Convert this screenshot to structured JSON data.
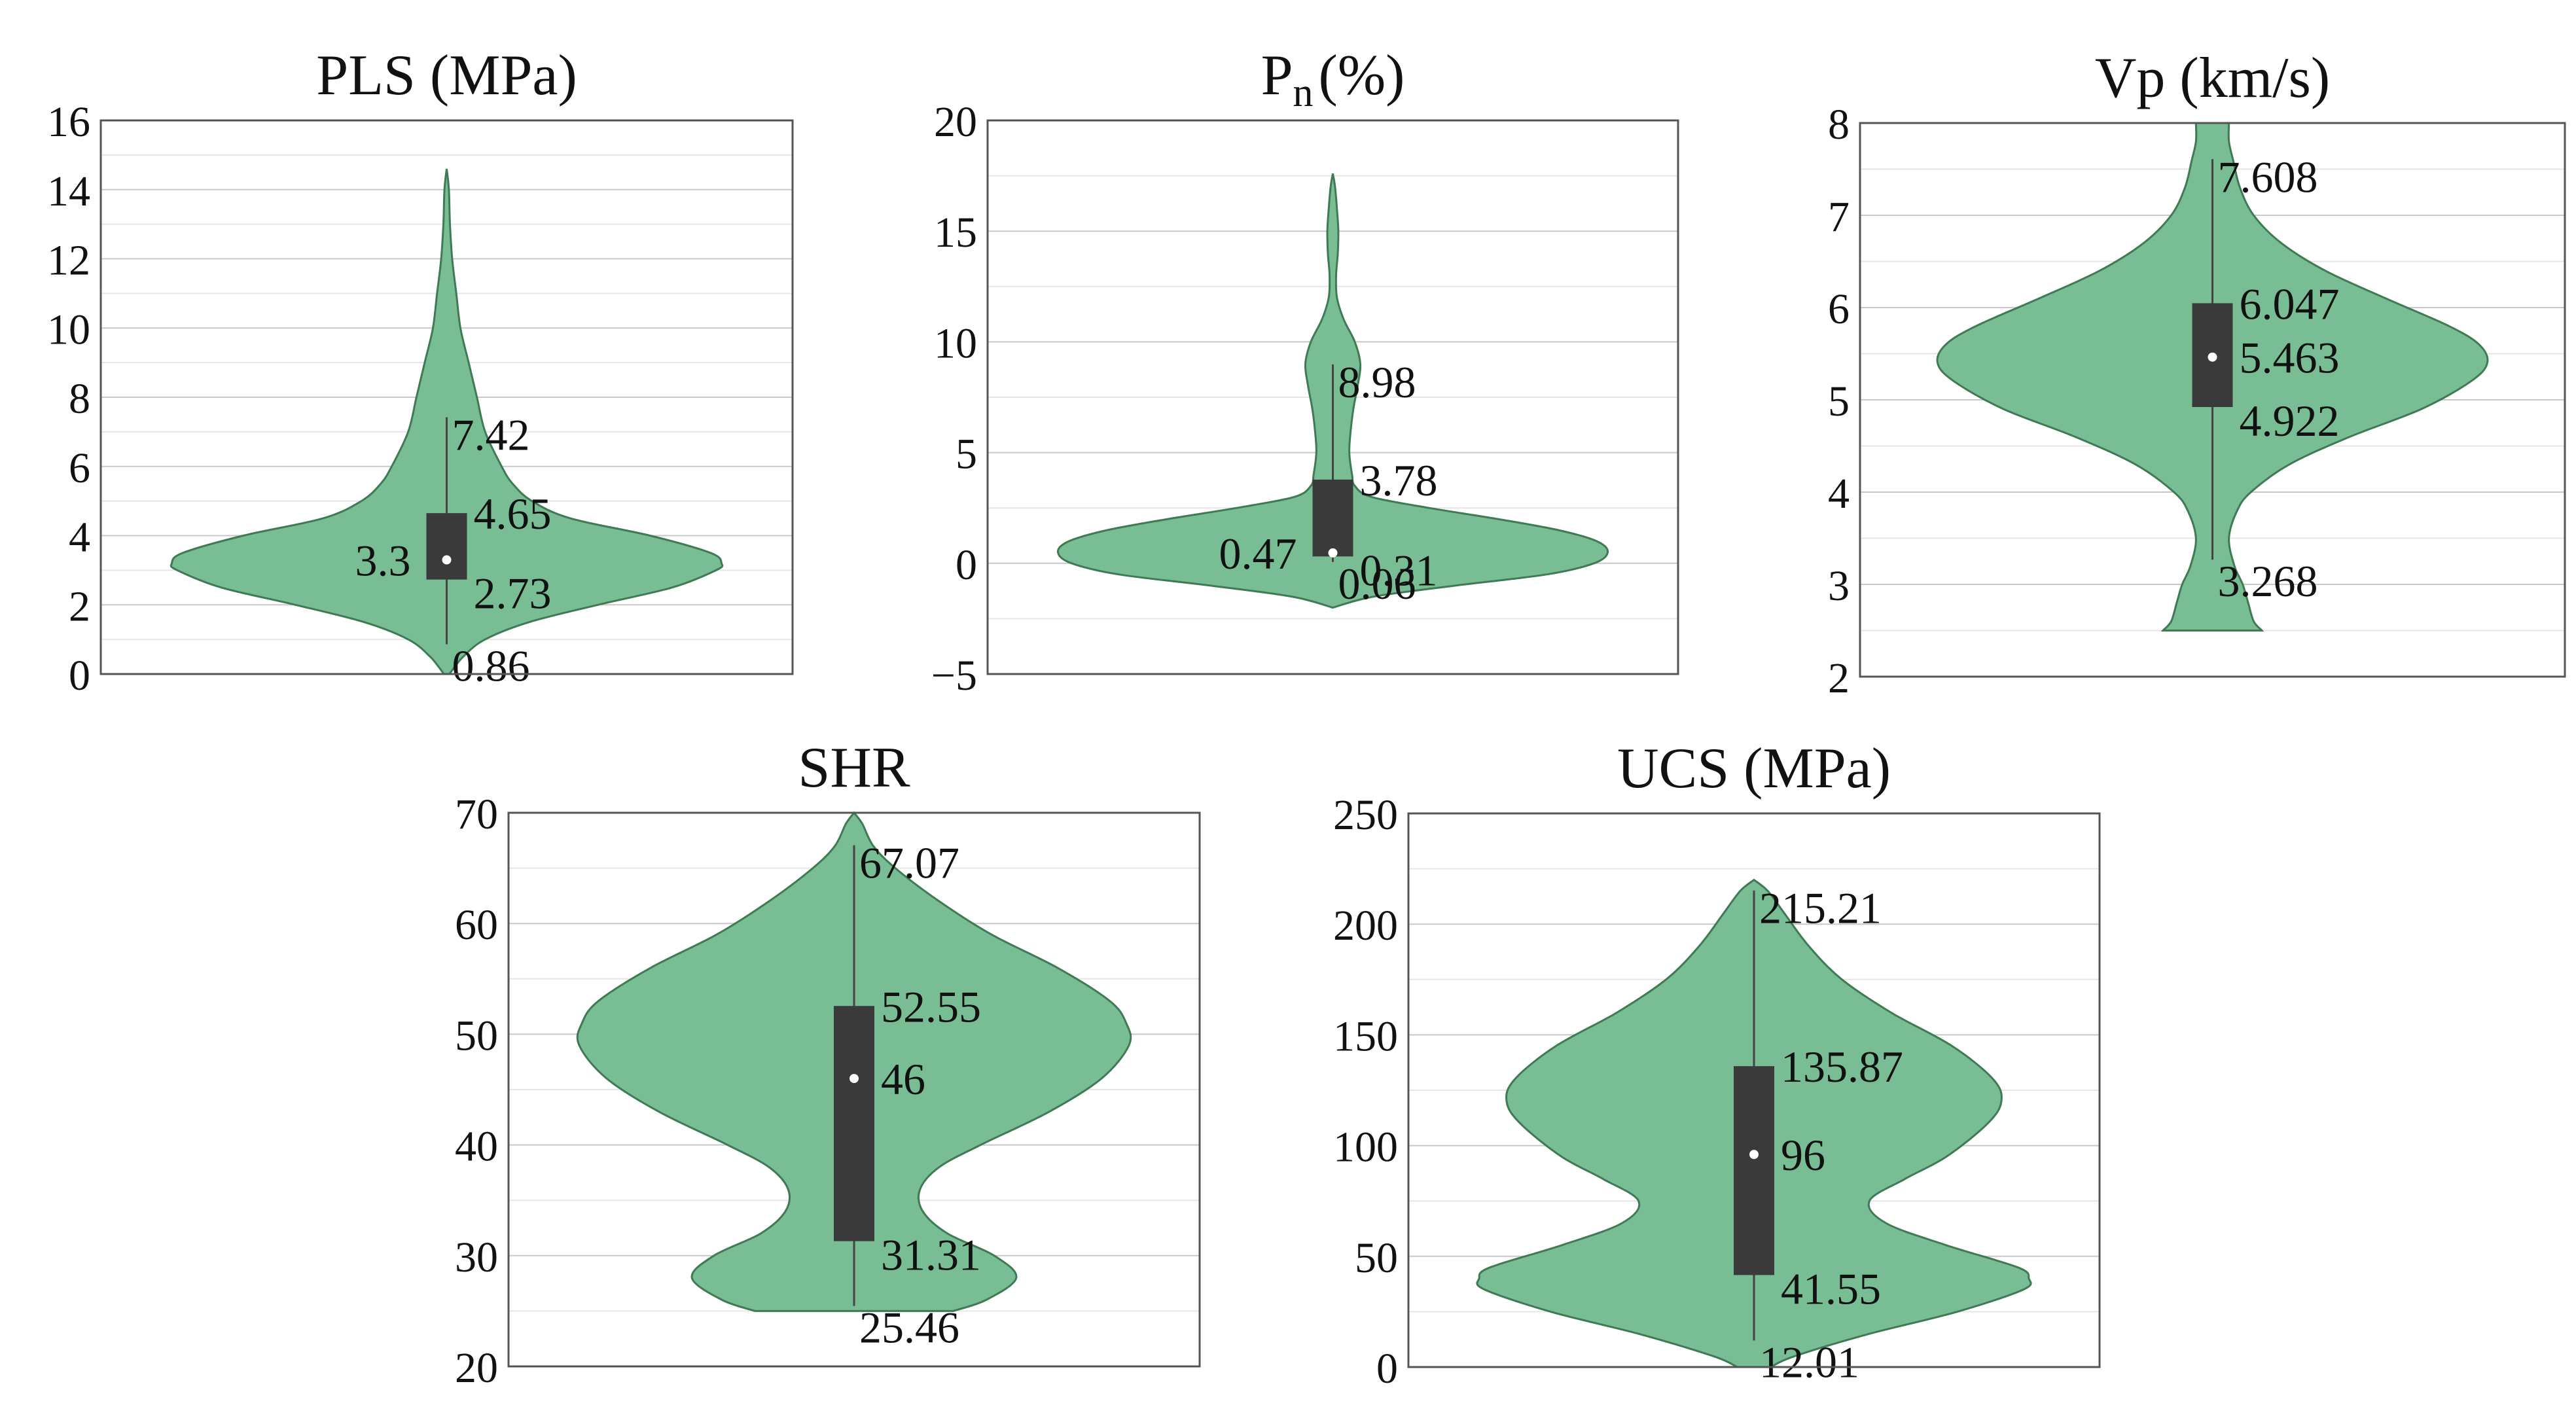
{
  "colors": {
    "violin_fill": "#78bd93",
    "violin_stroke": "#3f7a55",
    "box_fill": "#3a3a3a",
    "whisker": "#444444",
    "median_dot": "#ffffff",
    "grid_major": "#c8c8c8",
    "grid_minor": "#e6e6e6",
    "frame": "#555555"
  },
  "chart_data": [
    {
      "type": "violin",
      "title": "PLS (MPa)",
      "ylim": [
        0,
        16
      ],
      "yticks": [
        0,
        2,
        4,
        6,
        8,
        10,
        12,
        14,
        16
      ],
      "ytick_labels": [
        "0",
        "2",
        "4",
        "6",
        "8",
        "10",
        "12",
        "14",
        "16"
      ],
      "stats": {
        "min": 0.86,
        "q1": 2.73,
        "median": 3.3,
        "q3": 4.65,
        "max": 7.42
      },
      "labels": {
        "min": "0.86",
        "q1": "2.73",
        "median": "3.3",
        "q3": "4.65",
        "max": "7.42"
      },
      "median_label_side": "left",
      "density": [
        [
          0,
          0.01
        ],
        [
          0.5,
          0.06
        ],
        [
          1,
          0.14
        ],
        [
          1.5,
          0.3
        ],
        [
          2,
          0.55
        ],
        [
          2.5,
          0.82
        ],
        [
          3,
          0.98
        ],
        [
          3.2,
          1.0
        ],
        [
          3.5,
          0.96
        ],
        [
          4,
          0.74
        ],
        [
          4.5,
          0.45
        ],
        [
          5,
          0.31
        ],
        [
          5.5,
          0.24
        ],
        [
          6,
          0.2
        ],
        [
          7,
          0.14
        ],
        [
          8,
          0.11
        ],
        [
          9,
          0.08
        ],
        [
          10,
          0.05
        ],
        [
          11,
          0.035
        ],
        [
          12,
          0.02
        ],
        [
          13,
          0.012
        ],
        [
          14,
          0.008
        ],
        [
          14.6,
          0.0
        ]
      ]
    },
    {
      "type": "violin",
      "title": "Pn (%)",
      "title_main": "P",
      "title_sub": "n",
      "title_rest": "(%)",
      "ylim": [
        -5,
        20
      ],
      "yticks": [
        -5,
        0,
        5,
        10,
        15,
        20
      ],
      "ytick_labels": [
        "−5",
        "0",
        "5",
        "10",
        "15",
        "20"
      ],
      "stats": {
        "min": 0.06,
        "q1": 0.31,
        "median": 0.47,
        "q3": 3.78,
        "max": 8.98
      },
      "labels": {
        "min": "0.06",
        "q1": "0.31",
        "median": "0.47",
        "q3": "3.78",
        "max": "8.98"
      },
      "median_label_side": "left",
      "density": [
        [
          -2,
          0.0
        ],
        [
          -1.5,
          0.15
        ],
        [
          -1,
          0.45
        ],
        [
          -0.5,
          0.78
        ],
        [
          0,
          0.95
        ],
        [
          0.5,
          1.0
        ],
        [
          1,
          0.96
        ],
        [
          1.5,
          0.82
        ],
        [
          2,
          0.6
        ],
        [
          2.5,
          0.35
        ],
        [
          3,
          0.14
        ],
        [
          3.5,
          0.08
        ],
        [
          4,
          0.07
        ],
        [
          5,
          0.06
        ],
        [
          6,
          0.065
        ],
        [
          7,
          0.075
        ],
        [
          8,
          0.09
        ],
        [
          9,
          0.1
        ],
        [
          10,
          0.08
        ],
        [
          11,
          0.04
        ],
        [
          12,
          0.015
        ],
        [
          13,
          0.012
        ],
        [
          14,
          0.018
        ],
        [
          15,
          0.02
        ],
        [
          16,
          0.015
        ],
        [
          17,
          0.008
        ],
        [
          17.6,
          0.0
        ]
      ]
    },
    {
      "type": "violin",
      "title": "Vp (km/s)",
      "ylim": [
        2,
        8
      ],
      "yticks": [
        2,
        3,
        4,
        5,
        6,
        7,
        8
      ],
      "ytick_labels": [
        "2",
        "3",
        "4",
        "5",
        "6",
        "7",
        "8"
      ],
      "stats": {
        "min": 3.268,
        "q1": 4.922,
        "median": 5.463,
        "q3": 6.047,
        "max": 7.608
      },
      "labels": {
        "min": "3.268",
        "q1": "4.922",
        "median": "5.463",
        "q3": "6.047",
        "max": "7.608"
      },
      "median_label_side": "right",
      "density": [
        [
          2.5,
          0.18
        ],
        [
          2.6,
          0.15
        ],
        [
          2.8,
          0.13
        ],
        [
          3,
          0.11
        ],
        [
          3.2,
          0.08
        ],
        [
          3.5,
          0.06
        ],
        [
          3.8,
          0.09
        ],
        [
          4,
          0.14
        ],
        [
          4.3,
          0.28
        ],
        [
          4.6,
          0.5
        ],
        [
          4.9,
          0.76
        ],
        [
          5.2,
          0.94
        ],
        [
          5.4,
          1.0
        ],
        [
          5.6,
          0.97
        ],
        [
          5.8,
          0.86
        ],
        [
          6.1,
          0.63
        ],
        [
          6.4,
          0.41
        ],
        [
          6.7,
          0.25
        ],
        [
          7,
          0.15
        ],
        [
          7.3,
          0.1
        ],
        [
          7.6,
          0.075
        ],
        [
          7.8,
          0.06
        ],
        [
          8,
          0.06
        ]
      ]
    },
    {
      "type": "violin",
      "title": "SHR",
      "ylim": [
        20,
        70
      ],
      "yticks": [
        20,
        30,
        40,
        50,
        60,
        70
      ],
      "ytick_labels": [
        "20",
        "30",
        "40",
        "50",
        "60",
        "70"
      ],
      "stats": {
        "min": 25.46,
        "q1": 31.31,
        "median": 46,
        "q3": 52.55,
        "max": 67.07
      },
      "labels": {
        "min": "25.46",
        "q1": "31.31",
        "median": "46",
        "q3": "52.55",
        "max": "67.07"
      },
      "median_label_side": "right",
      "density": [
        [
          25,
          0.36
        ],
        [
          26,
          0.48
        ],
        [
          28,
          0.59
        ],
        [
          30,
          0.51
        ],
        [
          32,
          0.34
        ],
        [
          34,
          0.25
        ],
        [
          36,
          0.24
        ],
        [
          38,
          0.31
        ],
        [
          40,
          0.46
        ],
        [
          43,
          0.71
        ],
        [
          46,
          0.9
        ],
        [
          49,
          1.0
        ],
        [
          51,
          0.99
        ],
        [
          53,
          0.93
        ],
        [
          56,
          0.74
        ],
        [
          59,
          0.5
        ],
        [
          62,
          0.31
        ],
        [
          65,
          0.15
        ],
        [
          67,
          0.07
        ],
        [
          69,
          0.03
        ],
        [
          70,
          0.0
        ]
      ]
    },
    {
      "type": "violin",
      "title": "UCS (MPa)",
      "ylim": [
        0,
        250
      ],
      "yticks": [
        0,
        50,
        100,
        150,
        200,
        250
      ],
      "ytick_labels": [
        "0",
        "50",
        "100",
        "150",
        "200",
        "250"
      ],
      "stats": {
        "min": 12.01,
        "q1": 41.55,
        "median": 96,
        "q3": 135.87,
        "max": 215.21
      },
      "labels": {
        "min": "12.01",
        "q1": "41.55",
        "median": "96",
        "q3": "135.87",
        "max": "215.21"
      },
      "median_label_side": "right",
      "density": [
        [
          0,
          0.06
        ],
        [
          5,
          0.15
        ],
        [
          15,
          0.42
        ],
        [
          25,
          0.74
        ],
        [
          35,
          0.98
        ],
        [
          40,
          1.0
        ],
        [
          45,
          0.96
        ],
        [
          55,
          0.7
        ],
        [
          65,
          0.48
        ],
        [
          75,
          0.42
        ],
        [
          85,
          0.55
        ],
        [
          95,
          0.7
        ],
        [
          110,
          0.85
        ],
        [
          120,
          0.9
        ],
        [
          130,
          0.87
        ],
        [
          145,
          0.72
        ],
        [
          160,
          0.5
        ],
        [
          175,
          0.32
        ],
        [
          190,
          0.2
        ],
        [
          205,
          0.11
        ],
        [
          215,
          0.05
        ],
        [
          220,
          0.0
        ]
      ]
    }
  ]
}
